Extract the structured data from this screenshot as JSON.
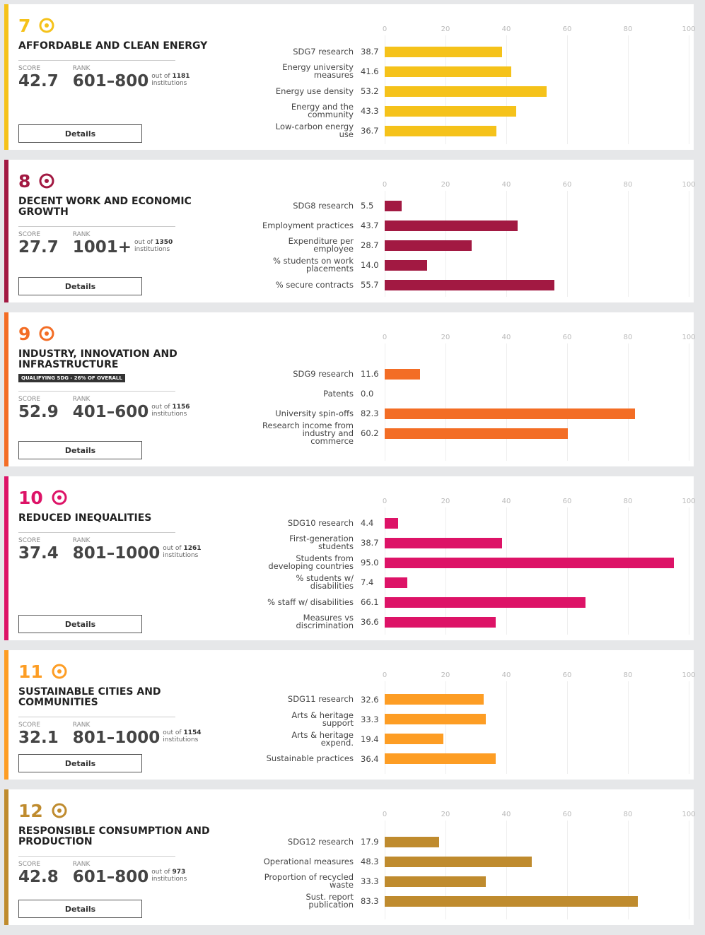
{
  "labels": {
    "score": "SCORE",
    "rank": "RANK",
    "out_of": "out of",
    "institutions": "institutions",
    "details": "Details"
  },
  "cards": [
    {
      "number": "7",
      "title": "AFFORDABLE AND CLEAN ENERGY",
      "score": 42.7,
      "rank": "601–800",
      "total": 1181,
      "color": "#f5c21a",
      "chart": {
        "type": "bar",
        "categories": [
          "SDG7 research",
          "Energy university measures",
          "Energy use density",
          "Energy and the community",
          "Low-carbon energy use"
        ],
        "values": [
          38.7,
          41.6,
          53.2,
          43.3,
          36.7
        ],
        "value_labels": [
          "38.7",
          "41.6",
          "53.2",
          "43.3",
          "36.7"
        ],
        "xlim": [
          0,
          100
        ],
        "xticks": [
          0,
          20,
          40,
          60,
          80,
          100
        ],
        "grid": true
      }
    },
    {
      "number": "8",
      "title": "DECENT WORK AND ECONOMIC GROWTH",
      "score": 27.7,
      "rank": "1001+",
      "total": 1350,
      "color": "#a21942",
      "chart": {
        "type": "bar",
        "categories": [
          "SDG8 research",
          "Employment practices",
          "Expenditure per employee",
          "% students on work placements",
          "% secure contracts"
        ],
        "values": [
          5.5,
          43.7,
          28.7,
          14.0,
          55.7
        ],
        "value_labels": [
          "5.5",
          "43.7",
          "28.7",
          "14.0",
          "55.7"
        ],
        "xlim": [
          0,
          100
        ],
        "xticks": [
          0,
          20,
          40,
          60,
          80,
          100
        ],
        "grid": true
      }
    },
    {
      "number": "9",
      "title": "INDUSTRY, INNOVATION AND INFRASTRUCTURE",
      "badge": "QUALIFYING SDG - 26% OF OVERALL",
      "score": 52.9,
      "rank": "401–600",
      "total": 1156,
      "color": "#f36d25",
      "chart": {
        "type": "bar",
        "categories": [
          "SDG9 research",
          "Patents",
          "University spin-offs",
          "Research income from industry and commerce"
        ],
        "values": [
          11.6,
          0.0,
          82.3,
          60.2
        ],
        "value_labels": [
          "11.6",
          "0.0",
          "82.3",
          "60.2"
        ],
        "xlim": [
          0,
          100
        ],
        "xticks": [
          0,
          20,
          40,
          60,
          80,
          100
        ],
        "grid": true
      }
    },
    {
      "number": "10",
      "title": "REDUCED INEQUALITIES",
      "score": 37.4,
      "rank": "801–1000",
      "total": 1261,
      "color": "#dd1367",
      "chart": {
        "type": "bar",
        "categories": [
          "SDG10 research",
          "First-generation students",
          "Students from developing countries",
          "% students w/ disabilities",
          "% staff w/ disabilities",
          "Measures vs discrimination"
        ],
        "values": [
          4.4,
          38.7,
          95.0,
          7.4,
          66.1,
          36.6
        ],
        "value_labels": [
          "4.4",
          "38.7",
          "95.0",
          "7.4",
          "66.1",
          "36.6"
        ],
        "xlim": [
          0,
          100
        ],
        "xticks": [
          0,
          20,
          40,
          60,
          80,
          100
        ],
        "grid": true
      }
    },
    {
      "number": "11",
      "title": "SUSTAINABLE CITIES AND COMMUNITIES",
      "score": 32.1,
      "rank": "801–1000",
      "total": 1154,
      "color": "#fd9d24",
      "chart": {
        "type": "bar",
        "categories": [
          "SDG11 research",
          "Arts & heritage support",
          "Arts & heritage expend.",
          "Sustainable practices"
        ],
        "values": [
          32.6,
          33.3,
          19.4,
          36.4
        ],
        "value_labels": [
          "32.6",
          "33.3",
          "19.4",
          "36.4"
        ],
        "xlim": [
          0,
          100
        ],
        "xticks": [
          0,
          20,
          40,
          60,
          80,
          100
        ],
        "grid": true
      }
    },
    {
      "number": "12",
      "title": "RESPONSIBLE CONSUMPTION AND PRODUCTION",
      "score": 42.8,
      "rank": "601–800",
      "total": 973,
      "color": "#bf8b2e",
      "chart": {
        "type": "bar",
        "categories": [
          "SDG12 research",
          "Operational measures",
          "Proportion of recycled waste",
          "Sust. report publication"
        ],
        "values": [
          17.9,
          48.3,
          33.3,
          83.3
        ],
        "value_labels": [
          "17.9",
          "48.3",
          "33.3",
          "83.3"
        ],
        "xlim": [
          0,
          100
        ],
        "xticks": [
          0,
          20,
          40,
          60,
          80,
          100
        ],
        "grid": true
      }
    }
  ]
}
